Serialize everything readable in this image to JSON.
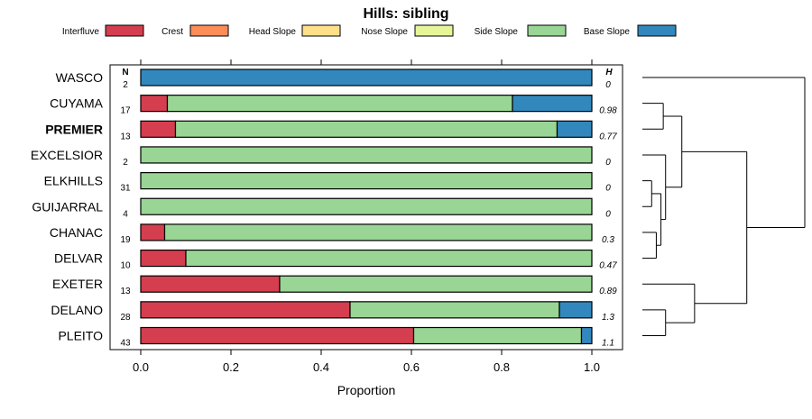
{
  "chart_data": {
    "type": "bar",
    "orientation": "horizontal",
    "stacked": true,
    "title": "Hills: sibling",
    "xlabel": "Proportion",
    "xlim": [
      0,
      1
    ],
    "x_ticks": [
      "0.0",
      "0.2",
      "0.4",
      "0.6",
      "0.8",
      "1.0"
    ],
    "x_tick_values": [
      0,
      0.2,
      0.4,
      0.6,
      0.8,
      1.0
    ],
    "n_header": "N",
    "h_header": "H",
    "legend": [
      {
        "name": "Interfluve",
        "color": "#d53e4f"
      },
      {
        "name": "Crest",
        "color": "#fc8d59"
      },
      {
        "name": "Head Slope",
        "color": "#fee08b"
      },
      {
        "name": "Nose Slope",
        "color": "#e6f598"
      },
      {
        "name": "Side Slope",
        "color": "#99d594"
      },
      {
        "name": "Base Slope",
        "color": "#3288bd"
      }
    ],
    "rows": [
      {
        "label": "WASCO",
        "bold": false,
        "n": "2",
        "h": "0",
        "values": [
          0,
          0,
          0,
          0,
          0,
          1.0
        ]
      },
      {
        "label": "CUYAMA",
        "bold": false,
        "n": "17",
        "h": "0.98",
        "values": [
          0.059,
          0,
          0,
          0,
          0.765,
          0.176
        ]
      },
      {
        "label": "PREMIER",
        "bold": true,
        "n": "13",
        "h": "0.77",
        "values": [
          0.077,
          0,
          0,
          0,
          0.846,
          0.077
        ]
      },
      {
        "label": "EXCELSIOR",
        "bold": false,
        "n": "2",
        "h": "0",
        "values": [
          0,
          0,
          0,
          0,
          1.0,
          0
        ]
      },
      {
        "label": "ELKHILLS",
        "bold": false,
        "n": "31",
        "h": "0",
        "values": [
          0,
          0,
          0,
          0,
          1.0,
          0
        ]
      },
      {
        "label": "GUIJARRAL",
        "bold": false,
        "n": "4",
        "h": "0",
        "values": [
          0,
          0,
          0,
          0,
          1.0,
          0
        ]
      },
      {
        "label": "CHANAC",
        "bold": false,
        "n": "19",
        "h": "0.3",
        "values": [
          0.053,
          0,
          0,
          0,
          0.947,
          0
        ]
      },
      {
        "label": "DELVAR",
        "bold": false,
        "n": "10",
        "h": "0.47",
        "values": [
          0.1,
          0,
          0,
          0,
          0.9,
          0
        ]
      },
      {
        "label": "EXETER",
        "bold": false,
        "n": "13",
        "h": "0.89",
        "values": [
          0.308,
          0,
          0,
          0,
          0.692,
          0
        ]
      },
      {
        "label": "DELANO",
        "bold": false,
        "n": "28",
        "h": "1.3",
        "values": [
          0.464,
          0,
          0,
          0,
          0.464,
          0.072
        ]
      },
      {
        "label": "PLEITO",
        "bold": false,
        "n": "43",
        "h": "1.1",
        "values": [
          0.605,
          0,
          0,
          0,
          0.372,
          0.023
        ]
      }
    ],
    "dendrogram": [
      {
        "leaves": [
          1,
          2
        ],
        "height": 0.18
      },
      {
        "leaves": [
          4,
          5
        ],
        "height": 0.08
      },
      {
        "leaves": [
          6,
          7
        ],
        "height": 0.12
      },
      {
        "leaves": [
          4,
          5,
          6,
          7
        ],
        "height": 0.16
      },
      {
        "leaves": [
          3,
          4,
          5,
          6,
          7
        ],
        "height": 0.2
      },
      {
        "leaves": [
          1,
          2,
          3,
          4,
          5,
          6,
          7
        ],
        "height": 0.34
      },
      {
        "leaves": [
          9,
          10
        ],
        "height": 0.2
      },
      {
        "leaves": [
          8,
          9,
          10
        ],
        "height": 0.45
      },
      {
        "leaves": [
          1,
          2,
          3,
          4,
          5,
          6,
          7,
          8,
          9,
          10
        ],
        "height": 0.9
      },
      {
        "leaves": [
          0,
          1,
          2,
          3,
          4,
          5,
          6,
          7,
          8,
          9,
          10
        ],
        "height": 1.4
      }
    ],
    "dendrogram_max_height": 1.4
  }
}
